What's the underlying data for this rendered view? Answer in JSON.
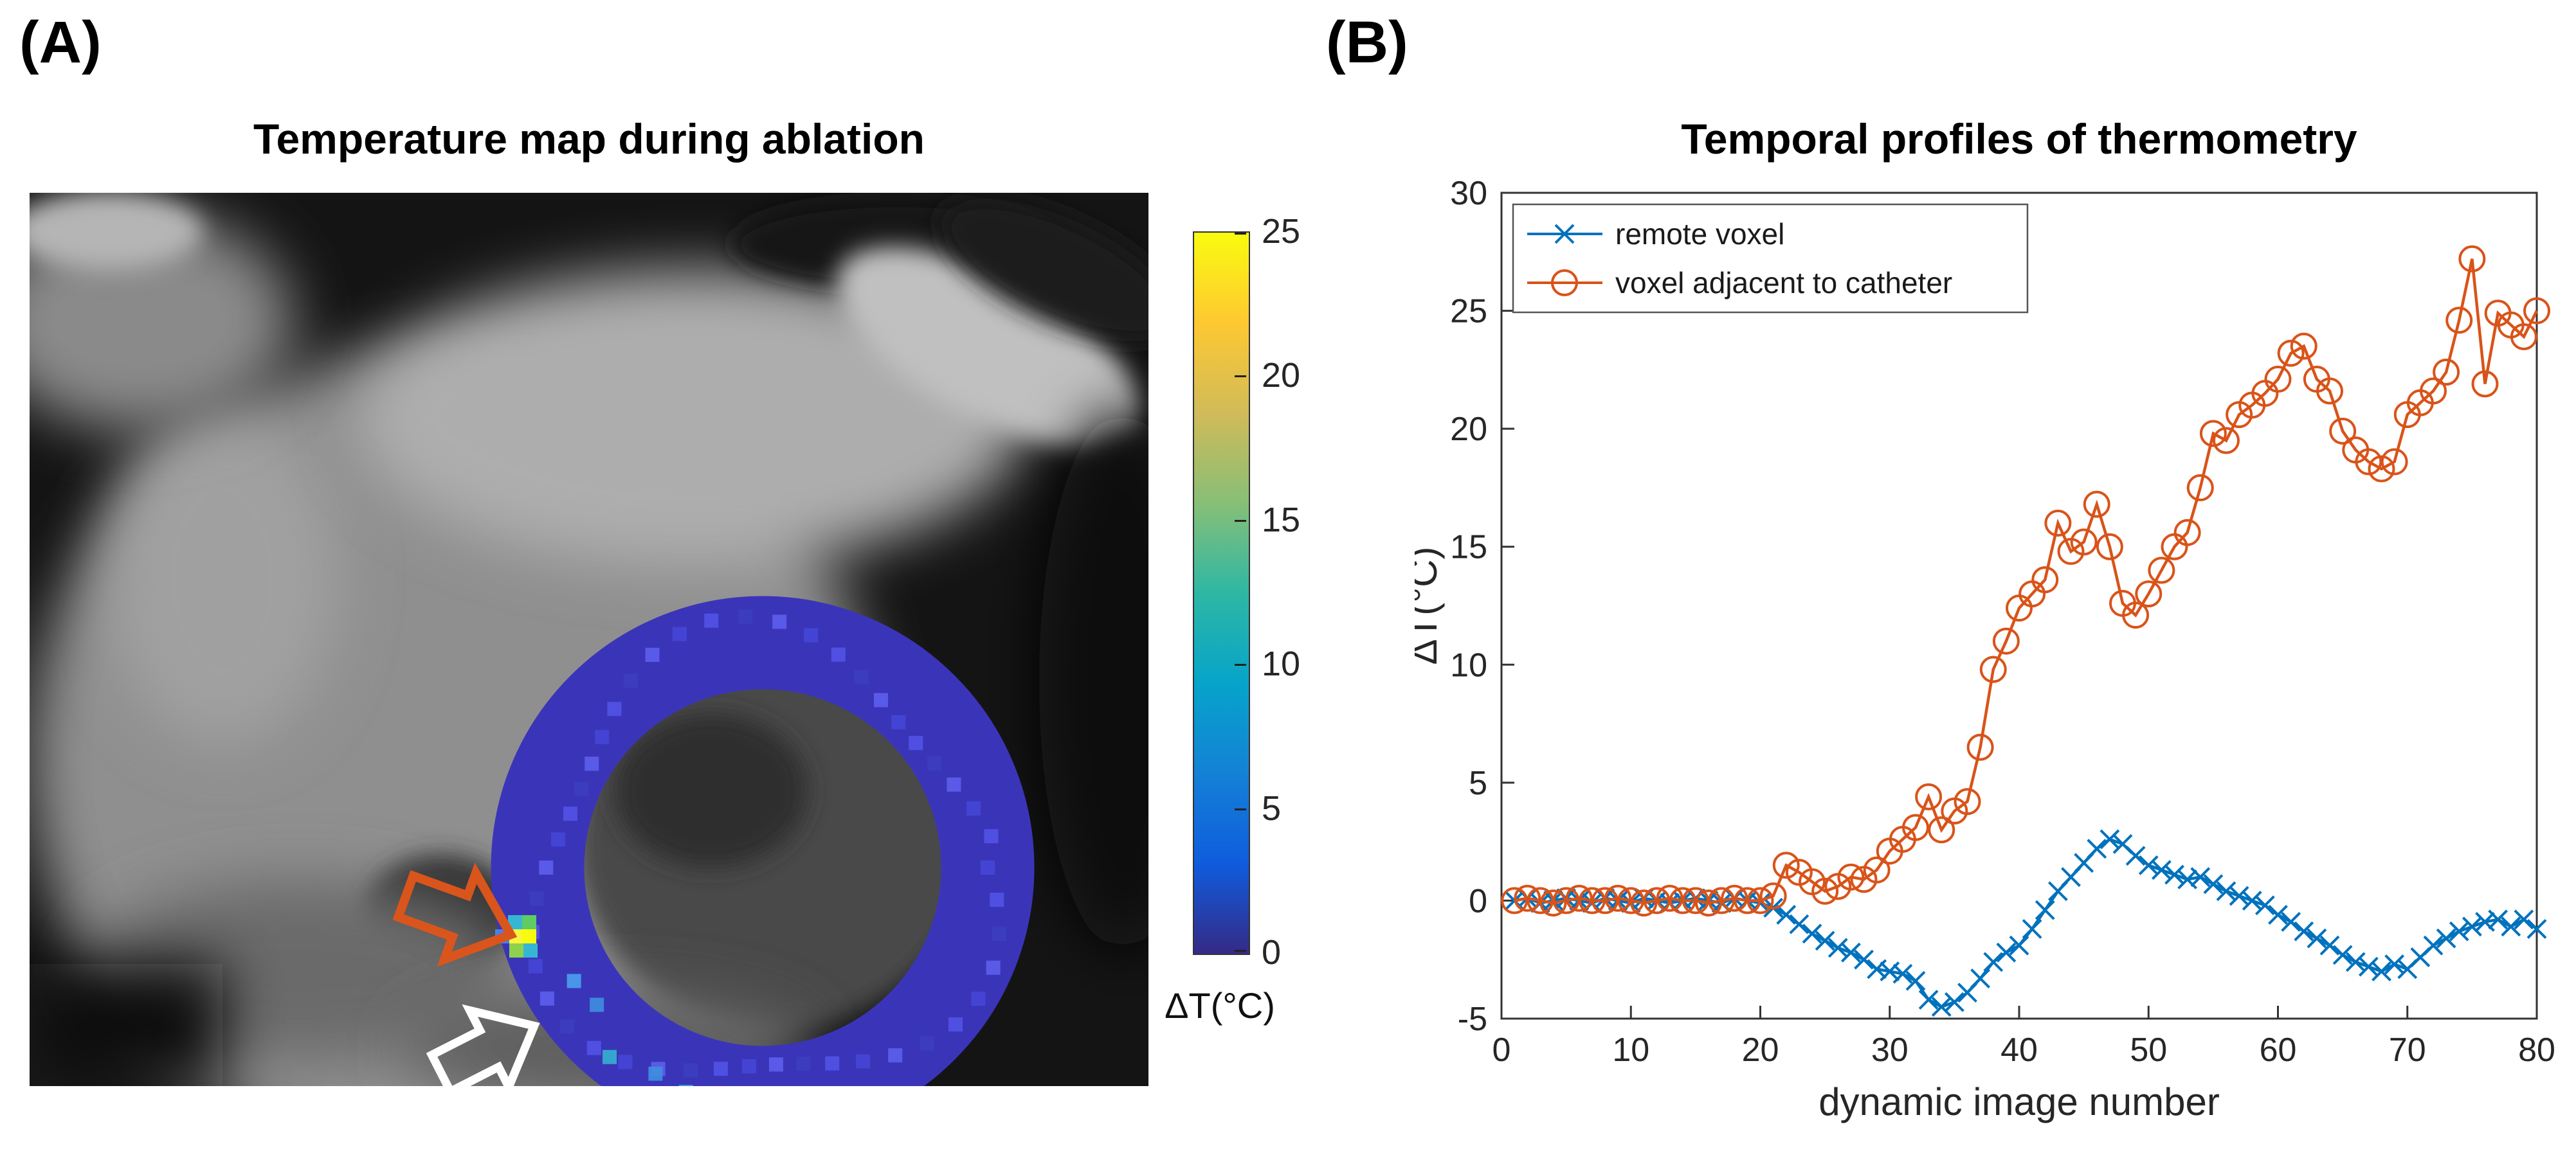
{
  "figure": {
    "panel_a": {
      "label": "(A)",
      "title": "Temperature map during ablation",
      "ring_color": "#3a35b8",
      "annotations": {
        "orange_arrow_color": "#d9551c",
        "white_arrow_color": "#ffffff"
      },
      "colorbar": {
        "ticks": [
          "25",
          "20",
          "15",
          "10",
          "5",
          "0"
        ],
        "label": "ΔT(°C)",
        "colormap": [
          "#352a87",
          "#0f5cdd",
          "#1481d6",
          "#06a4ca",
          "#2eb7a4",
          "#87bf77",
          "#d1bb59",
          "#fec832",
          "#f9fb0e"
        ]
      }
    },
    "panel_b": {
      "label": "(B)",
      "title": "Temporal profiles of thermometry"
    }
  },
  "chart_data": {
    "type": "line",
    "title": "Temporal profiles of thermometry",
    "xlabel": "dynamic image number",
    "ylabel": "ΔT(°C)",
    "xlim": [
      0,
      80
    ],
    "ylim": [
      -5,
      30
    ],
    "xticks": [
      0,
      10,
      20,
      30,
      40,
      50,
      60,
      70,
      80
    ],
    "yticks": [
      -5,
      0,
      5,
      10,
      15,
      20,
      25,
      30
    ],
    "grid": false,
    "legend_position": "top-left",
    "x_start": 1,
    "x_step": 1,
    "series": [
      {
        "name": "remote voxel",
        "color": "#0072BD",
        "marker": "x",
        "values": [
          0,
          0.1,
          -0.1,
          0,
          0.1,
          0,
          -0.1,
          0.1,
          0,
          -0.1,
          0.1,
          0,
          -0.1,
          0,
          0.1,
          0,
          -0.1,
          0.1,
          0,
          -0.1,
          -0.3,
          -0.6,
          -1.0,
          -1.4,
          -1.7,
          -2.0,
          -2.2,
          -2.5,
          -2.9,
          -3.0,
          -3.1,
          -3.4,
          -4.2,
          -4.5,
          -4.3,
          -3.9,
          -3.3,
          -2.6,
          -2.2,
          -1.9,
          -1.2,
          -0.4,
          0.4,
          1.0,
          1.6,
          2.2,
          2.6,
          2.4,
          1.9,
          1.5,
          1.3,
          1.1,
          0.9,
          1.0,
          0.7,
          0.4,
          0.2,
          0.0,
          -0.2,
          -0.6,
          -0.9,
          -1.3,
          -1.6,
          -1.9,
          -2.3,
          -2.6,
          -2.8,
          -3.0,
          -2.7,
          -2.9,
          -2.4,
          -1.9,
          -1.6,
          -1.3,
          -1.1,
          -0.9,
          -0.8,
          -1.1,
          -0.8,
          -1.2
        ]
      },
      {
        "name": "voxel adjacent to catheter",
        "color": "#D95319",
        "marker": "o",
        "values": [
          0,
          0.1,
          0,
          -0.1,
          0,
          0.1,
          0,
          0,
          0.1,
          0,
          -0.1,
          0,
          0.1,
          0,
          0,
          -0.1,
          0,
          0.1,
          0,
          0,
          0.2,
          1.5,
          1.2,
          0.8,
          0.4,
          0.6,
          1.0,
          0.9,
          1.3,
          2.1,
          2.6,
          3.1,
          4.4,
          3.0,
          3.8,
          4.2,
          6.5,
          9.8,
          11.0,
          12.4,
          13.0,
          13.6,
          16.0,
          14.8,
          15.2,
          16.8,
          15.0,
          12.6,
          12.1,
          13.0,
          14.0,
          15.0,
          15.6,
          17.5,
          19.8,
          19.5,
          20.6,
          21.0,
          21.5,
          22.1,
          23.2,
          23.5,
          22.1,
          21.6,
          19.9,
          19.1,
          18.6,
          18.3,
          18.6,
          20.6,
          21.1,
          21.6,
          22.4,
          24.6,
          27.2,
          21.9,
          24.9,
          24.4,
          23.9,
          25.0
        ]
      }
    ]
  }
}
